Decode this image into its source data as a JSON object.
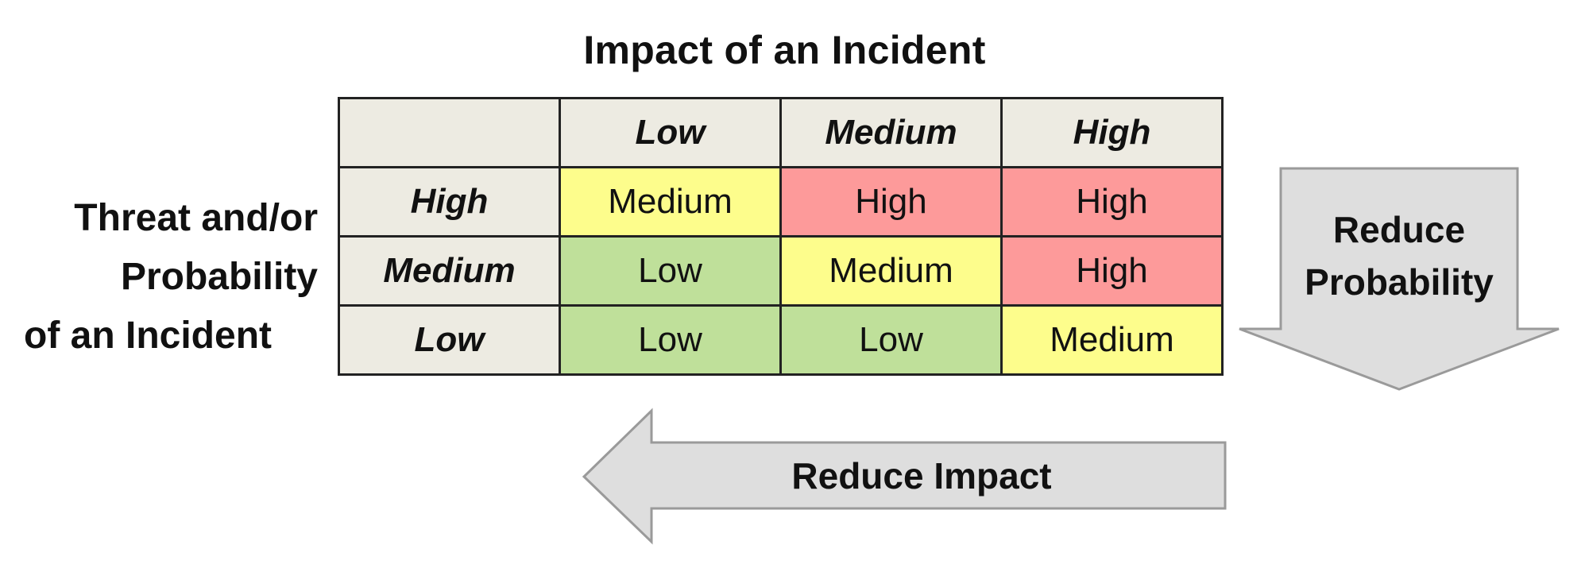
{
  "title": "Impact of an Incident",
  "row_axis_label": {
    "line1": "Threat and/or",
    "line2": "Probability",
    "line3": "of an Incident"
  },
  "matrix": {
    "column_headers": [
      "Low",
      "Medium",
      "High"
    ],
    "rows": [
      {
        "label": "High",
        "cells": [
          "Medium",
          "High",
          "High"
        ]
      },
      {
        "label": "Medium",
        "cells": [
          "Low",
          "Medium",
          "High"
        ]
      },
      {
        "label": "Low",
        "cells": [
          "Low",
          "Low",
          "Medium"
        ]
      }
    ]
  },
  "arrows": {
    "reduce_probability": {
      "line1": "Reduce",
      "line2": "Probability",
      "direction": "down"
    },
    "reduce_impact": {
      "label": "Reduce Impact",
      "direction": "left"
    }
  },
  "colors": {
    "header_bg": "#edebe2",
    "low": "#bfe09a",
    "medium": "#fdfd8c",
    "high": "#fd9a9a",
    "arrow_fill": "#dedede",
    "arrow_stroke": "#9a9a9a"
  }
}
